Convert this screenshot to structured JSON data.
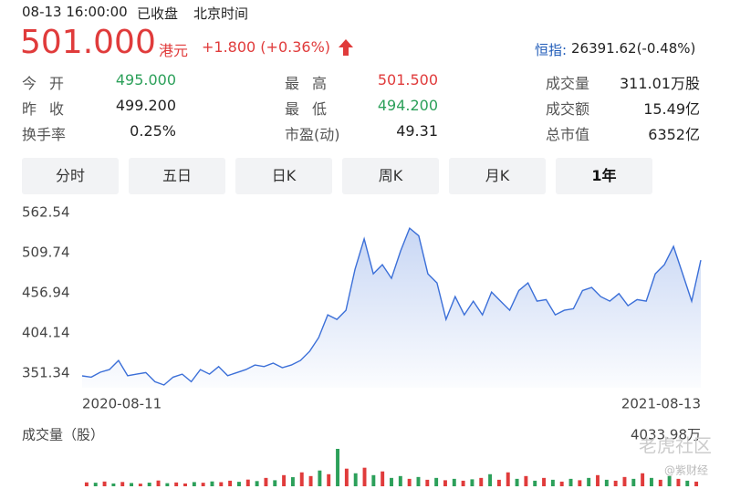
{
  "header": {
    "datetime": "08-13 16:00:00",
    "status": "已收盘",
    "timezone": "北京时间",
    "price": "501.000",
    "currency": "港元",
    "change": "+1.800 (+0.36%)",
    "index_label": "恒指:",
    "index_value": "26391.62(-0.48%)"
  },
  "stats": [
    [
      {
        "label": "今开",
        "value": "495.000",
        "color": "#2ca05a"
      },
      {
        "label": "最高",
        "value": "501.500",
        "color": "#e03b3b"
      },
      {
        "label": "成交量",
        "value": "311.01万股",
        "color": "#222"
      }
    ],
    [
      {
        "label": "昨收",
        "value": "499.200",
        "color": "#222"
      },
      {
        "label": "最低",
        "value": "494.200",
        "color": "#2ca05a"
      },
      {
        "label": "成交额",
        "value": "15.49亿",
        "color": "#222"
      }
    ],
    [
      {
        "label": "换手率",
        "value": "0.25%",
        "color": "#222"
      },
      {
        "label": "市盈(动)",
        "value": "49.31",
        "color": "#222"
      },
      {
        "label": "总市值",
        "value": "6352亿",
        "color": "#222"
      }
    ]
  ],
  "tabs": [
    "分时",
    "五日",
    "日K",
    "周K",
    "月K",
    "1年"
  ],
  "selected_tab": 5,
  "chart_data": {
    "type": "line",
    "categories": [
      "2020-08-11",
      null,
      null,
      null,
      null,
      null,
      null,
      null,
      null,
      null,
      null,
      null,
      null,
      null,
      null,
      null,
      null,
      null,
      null,
      null,
      null,
      null,
      null,
      null,
      null,
      null,
      null,
      null,
      null,
      null,
      null,
      null,
      null,
      null,
      null,
      null,
      null,
      null,
      null,
      null,
      null,
      null,
      null,
      null,
      null,
      null,
      null,
      null,
      null,
      null,
      null,
      null,
      null,
      null,
      null,
      null,
      null,
      null,
      null,
      null,
      null,
      null,
      null,
      null,
      null,
      null,
      null,
      null,
      "2021-08-13"
    ],
    "values": [
      347.7,
      346,
      352.5,
      356,
      368,
      348,
      350,
      352,
      340,
      335.7,
      346,
      350,
      340,
      356,
      350,
      360,
      348,
      352,
      356,
      362,
      360,
      364.5,
      358.5,
      362,
      368,
      380,
      398,
      428,
      422,
      434,
      488,
      528,
      482,
      494,
      476,
      512,
      542,
      532,
      482,
      470,
      422,
      452,
      428,
      446,
      428,
      458,
      446,
      434,
      460,
      470,
      446,
      448,
      428,
      434,
      436,
      460,
      464,
      452,
      446,
      456,
      440,
      448,
      446,
      482,
      494,
      518,
      482,
      446,
      500
    ],
    "color": "#3b6fd8",
    "ylim": [
      332.14,
      572.14
    ],
    "yticks": [
      562.54,
      509.74,
      456.94,
      404.14,
      351.34
    ],
    "volume_label": "成交量（股）",
    "volume": [
      420,
      380,
      510,
      300,
      460,
      350,
      280,
      390,
      620,
      330,
      410,
      300,
      450,
      380,
      520,
      440,
      600,
      480,
      720,
      560,
      900,
      650,
      1200,
      980,
      1500,
      1100,
      1700,
      1300,
      4033.98,
      1900,
      1400,
      2000,
      1200,
      1600,
      900,
      1100,
      800,
      1000,
      700,
      900,
      650,
      800,
      600,
      750,
      900,
      1300,
      700,
      1500,
      800,
      1100,
      600,
      900,
      700,
      500,
      800,
      650,
      900,
      1200,
      700,
      600,
      1000,
      800,
      1400,
      900,
      700,
      1100,
      800,
      600,
      500
    ],
    "volume_colors": [
      "#e03b3b",
      "#2ca05a",
      "#e03b3b",
      "#2ca05a",
      "#e03b3b",
      "#2ca05a",
      "#e03b3b",
      "#2ca05a",
      "#e03b3b",
      "#2ca05a",
      "#e03b3b",
      "#e03b3b",
      "#2ca05a",
      "#e03b3b",
      "#2ca05a",
      "#e03b3b",
      "#e03b3b",
      "#2ca05a",
      "#e03b3b",
      "#2ca05a",
      "#e03b3b",
      "#2ca05a",
      "#e03b3b",
      "#2ca05a",
      "#e03b3b",
      "#e03b3b",
      "#2ca05a",
      "#e03b3b",
      "#2ca05a",
      "#e03b3b",
      "#2ca05a",
      "#e03b3b",
      "#2ca05a",
      "#e03b3b",
      "#2ca05a",
      "#2ca05a",
      "#e03b3b",
      "#2ca05a",
      "#e03b3b",
      "#2ca05a",
      "#e03b3b",
      "#2ca05a",
      "#e03b3b",
      "#2ca05a",
      "#e03b3b",
      "#2ca05a",
      "#e03b3b",
      "#e03b3b",
      "#2ca05a",
      "#e03b3b",
      "#2ca05a",
      "#e03b3b",
      "#2ca05a",
      "#e03b3b",
      "#2ca05a",
      "#e03b3b",
      "#2ca05a",
      "#e03b3b",
      "#2ca05a",
      "#e03b3b",
      "#e03b3b",
      "#2ca05a",
      "#e03b3b",
      "#2ca05a",
      "#e03b3b",
      "#2ca05a",
      "#e03b3b",
      "#2ca05a",
      "#e03b3b"
    ],
    "volume_ylim": [
      0,
      4033.98
    ],
    "volume_ticks": [
      {
        "value": 4033.98,
        "label": "4033.98万"
      }
    ]
  },
  "watermark": [
    "老虎社区",
    "@紫财经"
  ]
}
